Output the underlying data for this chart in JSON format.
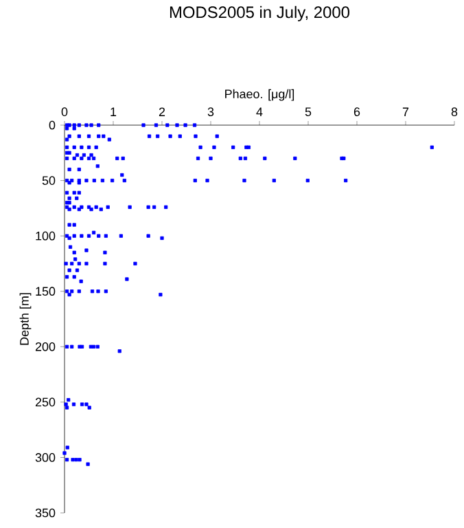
{
  "chart_data": {
    "type": "scatter",
    "title": "MODS2005 in July, 2000",
    "xlabel": "Phaeo. [μg/l]",
    "ylabel": "Depth [m]",
    "x": [
      0.05,
      0.1,
      0.2,
      0.3,
      0.45,
      0.55,
      0.7,
      1.62,
      1.88,
      2.11,
      2.31,
      2.48,
      2.67,
      0.05,
      0.2,
      0.1,
      0.3,
      0.5,
      0.7,
      0.8,
      1.74,
      1.91,
      2.17,
      2.37,
      2.69,
      3.13,
      0.05,
      0.92,
      0.05,
      0.2,
      0.35,
      0.5,
      0.65,
      2.79,
      3.07,
      3.46,
      3.73,
      3.78,
      7.54,
      0.05,
      0.1,
      0.26,
      0.4,
      0.55,
      0.05,
      0.2,
      0.35,
      0.5,
      0.6,
      1.08,
      1.2,
      2.74,
      3.0,
      3.61,
      3.71,
      4.11,
      4.73,
      5.69,
      5.73,
      0.68,
      0.1,
      0.3,
      1.18,
      0.05,
      0.15,
      0.3,
      0.45,
      0.61,
      0.78,
      0.98,
      1.23,
      2.68,
      2.93,
      3.69,
      4.3,
      4.99,
      5.77,
      0.1,
      0.3,
      0.05,
      0.2,
      0.3,
      0.1,
      0.25,
      0.05,
      0.1,
      0.05,
      0.2,
      0.35,
      0.5,
      0.65,
      0.89,
      1.34,
      1.72,
      1.84,
      2.08,
      0.1,
      0.3,
      0.55,
      0.75,
      0.1,
      0.2,
      0.6,
      0.05,
      0.2,
      0.35,
      0.5,
      0.7,
      0.85,
      1.16,
      1.72,
      0.1,
      2.0,
      0.12,
      0.45,
      0.2,
      0.83,
      0.22,
      0.03,
      0.15,
      0.3,
      0.45,
      0.83,
      1.45,
      0.1,
      0.26,
      0.05,
      0.2,
      1.28,
      0.34,
      0.05,
      0.15,
      0.3,
      0.57,
      0.69,
      0.85,
      0.1,
      1.97,
      0.05,
      0.15,
      0.31,
      0.36,
      0.54,
      0.6,
      0.68,
      1.13,
      0.08,
      0.03,
      0.19,
      0.36,
      0.45,
      0.05,
      0.51,
      0.06,
      0.0,
      0.05,
      0.17,
      0.24,
      0.31,
      0.48
    ],
    "values": [
      0,
      0,
      0,
      0,
      0,
      0,
      0,
      0,
      0,
      0,
      0,
      0,
      0,
      3,
      3,
      10,
      10,
      10,
      10,
      10,
      10,
      10,
      10,
      10,
      10,
      10,
      13,
      13,
      20,
      20,
      20,
      20,
      20,
      20,
      20,
      20,
      20,
      20,
      20,
      25,
      25,
      27,
      27,
      27,
      30,
      30,
      30,
      30,
      30,
      30,
      30,
      30,
      30,
      30,
      30,
      30,
      30,
      30,
      30,
      37,
      40,
      40,
      45,
      50,
      50,
      50,
      50,
      50,
      50,
      50,
      50,
      50,
      50,
      50,
      50,
      50,
      50,
      52,
      52,
      61,
      61,
      61,
      66,
      66,
      70,
      70,
      74,
      74,
      74,
      74,
      74,
      74,
      74,
      74,
      74,
      74,
      76,
      76,
      76,
      76,
      90,
      90,
      97,
      100,
      100,
      100,
      100,
      100,
      100,
      100,
      100,
      102,
      102,
      110,
      113,
      115,
      115,
      121,
      125,
      125,
      125,
      125,
      125,
      125,
      131,
      131,
      137,
      137,
      139,
      141,
      150,
      150,
      150,
      150,
      150,
      150,
      153,
      153,
      200,
      200,
      200,
      200,
      200,
      200,
      200,
      204,
      248,
      252,
      252,
      252,
      252,
      255,
      255,
      291,
      296,
      302,
      302,
      302,
      302,
      306
    ],
    "color": "#0000ff",
    "marker": "square",
    "xlim": [
      0,
      8
    ],
    "xticks": [
      0,
      1,
      2,
      3,
      4,
      5,
      6,
      7,
      8
    ],
    "ylim": [
      350,
      0
    ],
    "yticks": [
      0,
      50,
      100,
      150,
      200,
      250,
      300,
      350
    ]
  }
}
